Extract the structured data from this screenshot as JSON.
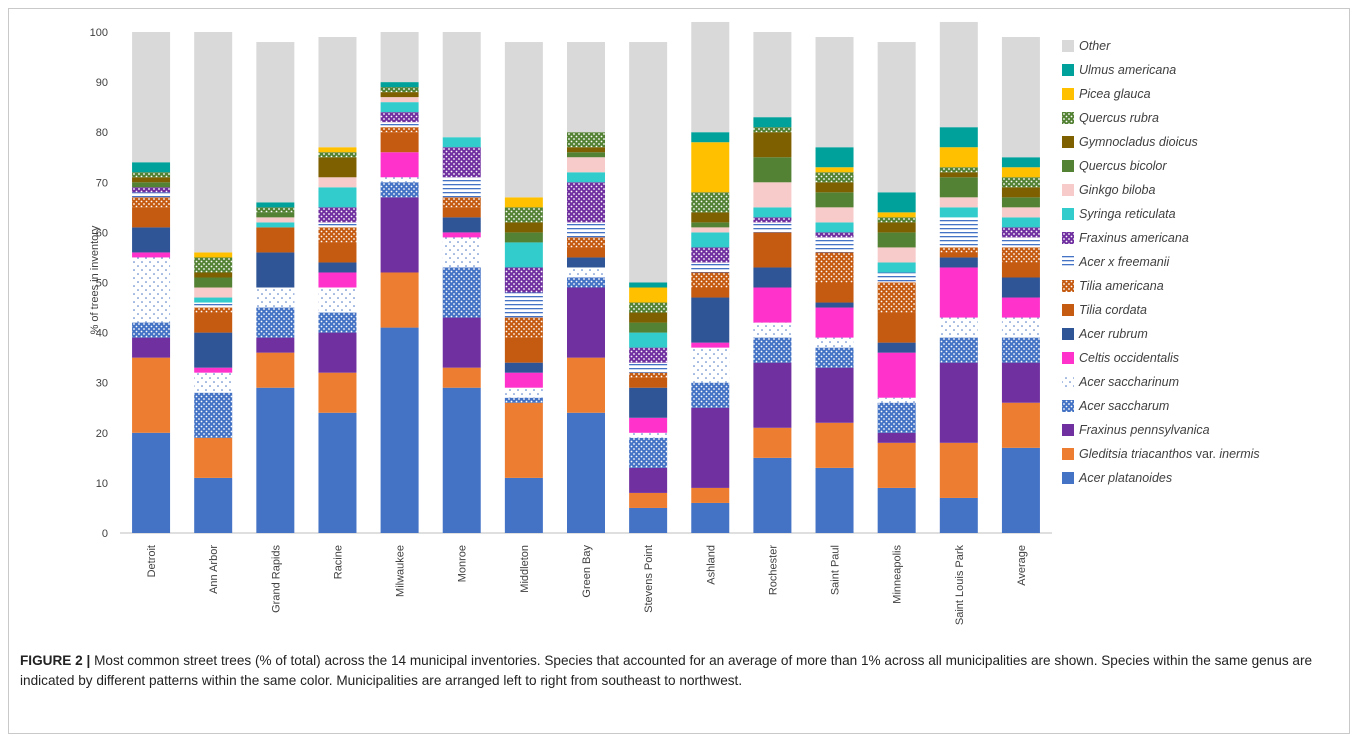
{
  "caption": {
    "label": "FIGURE 2 |",
    "text": "Most common street trees (% of total) across the 14 municipal inventories. Species that accounted for an average of more than 1% across all municipalities are shown. Species within the same genus are indicated by different patterns within the same color. Municipalities are arranged left to right from southeast to northwest."
  },
  "chart_data": {
    "type": "bar",
    "stacked": true,
    "ylabel": "% of trees in inventory",
    "ylim": [
      0,
      100
    ],
    "yticks": [
      0,
      10,
      20,
      30,
      40,
      50,
      60,
      70,
      80,
      90,
      100
    ],
    "legend_position": "right",
    "categories": [
      "Detroit",
      "Ann Arbor",
      "Grand Rapids",
      "Racine",
      "Milwaukee",
      "Monroe",
      "Middleton",
      "Green Bay",
      "Stevens Point",
      "Ashland",
      "Rochester",
      "Saint Paul",
      "Minneapolis",
      "Saint Louis Park",
      "Average"
    ],
    "series": [
      {
        "name": "Acer platanoides",
        "color": "#4472c4",
        "pattern": "solid",
        "values": [
          20,
          11,
          29,
          24,
          41,
          29,
          11,
          24,
          5,
          6,
          15,
          13,
          9,
          7,
          17
        ]
      },
      {
        "name": "Gleditsia triacanthos var. inermis",
        "name_main": "Gleditsia triacanthos",
        "name_suffix": " var. ",
        "name_tail": "inermis",
        "color": "#ed7d31",
        "pattern": "solid",
        "values": [
          15,
          8,
          7,
          8,
          11,
          4,
          15,
          11,
          3,
          3,
          6,
          9,
          9,
          11,
          9
        ]
      },
      {
        "name": "Fraxinus pennsylvanica",
        "color": "#7030a0",
        "pattern": "solid",
        "values": [
          4,
          0,
          3,
          8,
          15,
          10,
          0,
          14,
          5,
          16,
          13,
          11,
          2,
          16,
          8
        ]
      },
      {
        "name": "Acer saccharum",
        "color": "#4472c4",
        "pattern": "dots",
        "values": [
          3,
          9,
          6,
          4,
          3,
          10,
          1,
          2,
          6,
          5,
          5,
          4,
          6,
          5,
          5
        ]
      },
      {
        "name": "Acer saccharinum",
        "color": "#4472c4",
        "pattern": "sparse-dots",
        "values": [
          13,
          4,
          4,
          5,
          1,
          6,
          2,
          2,
          1,
          7,
          3,
          2,
          1,
          4,
          4
        ]
      },
      {
        "name": "Celtis occidentalis",
        "color": "#ff33cc",
        "pattern": "solid",
        "values": [
          1,
          1,
          0,
          3,
          5,
          1,
          3,
          0,
          3,
          1,
          7,
          6,
          9,
          10,
          4
        ]
      },
      {
        "name": "Acer rubrum",
        "color": "#2f5597",
        "pattern": "solid",
        "values": [
          5,
          7,
          7,
          2,
          0,
          3,
          2,
          2,
          6,
          9,
          4,
          1,
          2,
          2,
          4
        ]
      },
      {
        "name": "Tilia cordata",
        "color": "#c55a11",
        "pattern": "solid",
        "values": [
          4,
          4,
          5,
          4,
          4,
          2,
          5,
          2,
          2,
          2,
          7,
          4,
          6,
          1,
          3
        ]
      },
      {
        "name": "Tilia americana",
        "color": "#c55a11",
        "pattern": "dots",
        "values": [
          2,
          1,
          0,
          3,
          1,
          2,
          4,
          2,
          1,
          3,
          0,
          6,
          6,
          1,
          3
        ]
      },
      {
        "name": "Acer x freemanii",
        "color": "#4472c4",
        "pattern": "lines",
        "values": [
          1,
          1,
          0,
          1,
          1,
          4,
          5,
          3,
          2,
          2,
          2,
          3,
          2,
          6,
          2
        ]
      },
      {
        "name": "Fraxinus americana",
        "color": "#7030a0",
        "pattern": "dots",
        "values": [
          1,
          0,
          0,
          3,
          2,
          6,
          5,
          8,
          3,
          3,
          1,
          1,
          0,
          0,
          2
        ]
      },
      {
        "name": "Syringa reticulata",
        "color": "#33cccc",
        "pattern": "solid",
        "values": [
          0,
          1,
          1,
          4,
          2,
          2,
          5,
          2,
          3,
          3,
          2,
          2,
          2,
          2,
          2
        ]
      },
      {
        "name": "Ginkgo biloba",
        "color": "#f8cbcb",
        "pattern": "solid",
        "values": [
          0,
          2,
          1,
          2,
          1,
          0,
          0,
          3,
          0,
          1,
          5,
          3,
          3,
          2,
          2
        ]
      },
      {
        "name": "Quercus bicolor",
        "color": "#548235",
        "pattern": "solid",
        "values": [
          1,
          2,
          1,
          0,
          0,
          0,
          2,
          1,
          2,
          1,
          5,
          3,
          3,
          4,
          2
        ]
      },
      {
        "name": "Gymnocladus dioicus",
        "color": "#7f6000",
        "pattern": "solid",
        "values": [
          1,
          1,
          0,
          4,
          1,
          0,
          2,
          1,
          2,
          2,
          5,
          2,
          2,
          1,
          2
        ]
      },
      {
        "name": "Quercus rubra",
        "color": "#548235",
        "pattern": "dots",
        "values": [
          1,
          3,
          1,
          1,
          1,
          0,
          3,
          3,
          2,
          4,
          1,
          2,
          1,
          1,
          2
        ]
      },
      {
        "name": "Picea glauca",
        "color": "#ffc000",
        "pattern": "solid",
        "values": [
          0,
          1,
          0,
          1,
          0,
          0,
          2,
          0,
          3,
          10,
          0,
          1,
          1,
          4,
          2
        ]
      },
      {
        "name": "Ulmus americana",
        "color": "#00a19a",
        "pattern": "solid",
        "values": [
          2,
          0,
          1,
          0,
          1,
          0,
          0,
          0,
          1,
          2,
          2,
          4,
          4,
          4,
          2
        ]
      },
      {
        "name": "Other",
        "color": "#d9d9d9",
        "pattern": "solid",
        "values": [
          26,
          44,
          32,
          22,
          10,
          21,
          31,
          18,
          48,
          22,
          17,
          22,
          30,
          21,
          24
        ]
      }
    ]
  }
}
